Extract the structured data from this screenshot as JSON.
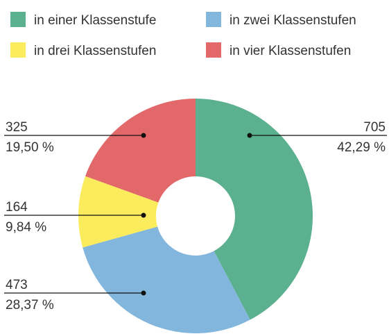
{
  "chart_data": {
    "type": "pie",
    "categories": [
      "in einer Klassenstufe",
      "in zwei Klassenstufen",
      "in drei Klassenstufen",
      "in vier Klassenstufen"
    ],
    "values": [
      705,
      473,
      164,
      325
    ],
    "percent_labels": [
      "42,29 %",
      "28,37 %",
      "9,84 %",
      "19,50 %"
    ],
    "colors": [
      "#5bb08f",
      "#82b6dd",
      "#fbec5d",
      "#e2686a"
    ],
    "donut": true
  }
}
